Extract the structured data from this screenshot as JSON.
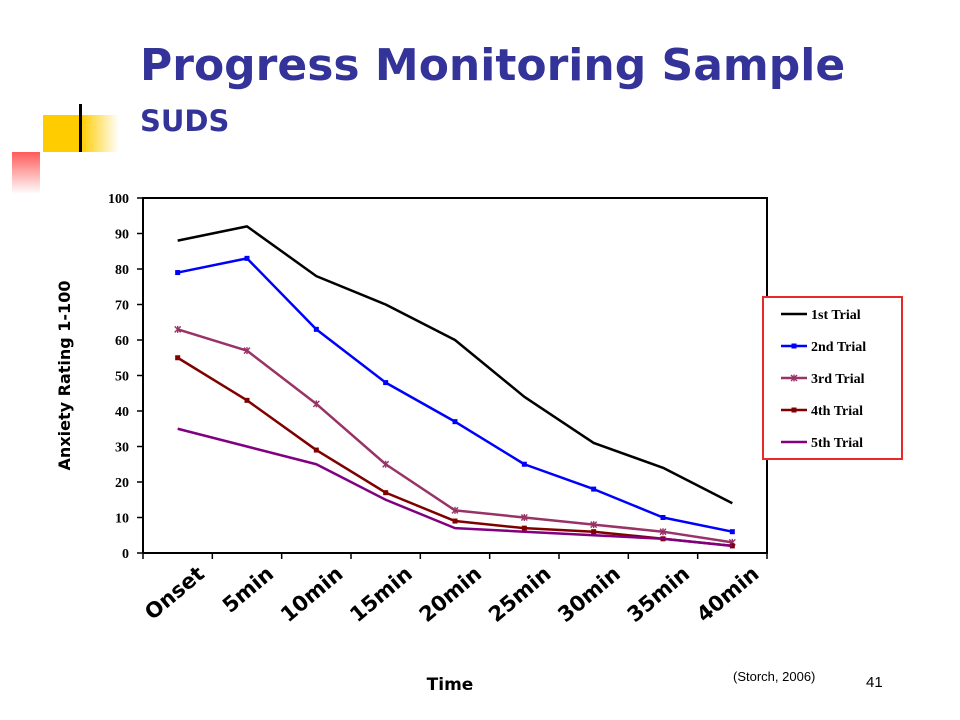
{
  "slide": {
    "title": "Progress Monitoring Sample",
    "subtitle": "SUDS",
    "citation": "(Storch, 2006)",
    "page_number": "41"
  },
  "colors": {
    "title": "#333399",
    "legend_border": "#e8282b",
    "deco_yellow": "#ffcc00",
    "deco_red": "#ff6666"
  },
  "chart_data": {
    "type": "line",
    "xlabel": "Time",
    "ylabel": "Anxiety Rating 1-100",
    "ylim": [
      0,
      100
    ],
    "yticks": [
      0,
      10,
      20,
      30,
      40,
      50,
      60,
      70,
      80,
      90,
      100
    ],
    "categories": [
      "Onset",
      "5min",
      "10min",
      "15min",
      "20min",
      "25min",
      "30min",
      "35min",
      "40min"
    ],
    "grid": false,
    "legend_position": "right",
    "series": [
      {
        "name": "1st Trial",
        "color": "#000000",
        "marker": "none",
        "values": [
          88,
          92,
          78,
          70,
          60,
          44,
          31,
          24,
          14
        ]
      },
      {
        "name": "2nd Trial",
        "color": "#0000ff",
        "marker": "square",
        "values": [
          79,
          83,
          63,
          48,
          37,
          25,
          18,
          10,
          6
        ]
      },
      {
        "name": "3rd Trial",
        "color": "#993366",
        "marker": "star",
        "values": [
          63,
          57,
          42,
          25,
          12,
          10,
          8,
          6,
          3
        ]
      },
      {
        "name": "4th Trial",
        "color": "#800000",
        "marker": "square",
        "values": [
          55,
          43,
          29,
          17,
          9,
          7,
          6,
          4,
          2
        ]
      },
      {
        "name": "5th Trial",
        "color": "#800080",
        "marker": "none",
        "values": [
          35,
          30,
          25,
          15,
          7,
          6,
          5,
          4,
          2
        ]
      }
    ]
  }
}
